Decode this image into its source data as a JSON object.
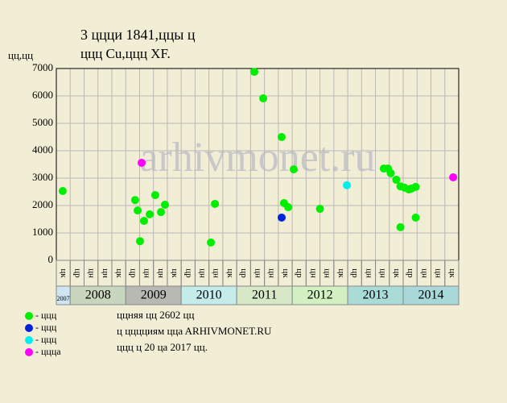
{
  "chart_data": {
    "type": "scatter",
    "title": "3 ццци 1841,ццы ц",
    "subtitle": "ццц Cu,ццц XF.",
    "y_label": "цц,цц",
    "watermark": "arhivmonet.ru",
    "quarters": [
      "цк",
      "цр",
      "цн",
      "цн",
      "цк",
      "цр",
      "цн",
      "цн",
      "цк",
      "цр",
      "цн",
      "цн",
      "цк",
      "цр",
      "цн",
      "цн",
      "цк",
      "цр",
      "цн",
      "цн",
      "цк",
      "цр",
      "цн",
      "цн",
      "цк",
      "цр",
      "цн",
      "цн",
      "цк"
    ],
    "years": [
      "2007",
      "2008",
      "2009",
      "2010",
      "2011",
      "2012",
      "2013",
      "2014"
    ],
    "year_colors": [
      "#cfe6f0",
      "#c9d6bf",
      "#b9b9b4",
      "#c4ecea",
      "#d6e8c6",
      "#d2f0c2",
      "#a9dcd6",
      "#a9d8d8"
    ],
    "xlim": [
      0,
      29
    ],
    "ylim": [
      0,
      7000
    ],
    "yticks": [
      0,
      1000,
      2000,
      3000,
      4000,
      5000,
      6000,
      7000
    ],
    "grid": true,
    "series": [
      {
        "name": "- ццц",
        "color": "#00ee00",
        "x": [
          0.46,
          5.68,
          5.86,
          6.03,
          6.32,
          6.73,
          7.13,
          7.54,
          7.83,
          11.14,
          11.43,
          14.27,
          14.91,
          16.24,
          16.41,
          16.71,
          17.11,
          19.0,
          23.6,
          23.9,
          24.1,
          24.5,
          24.8,
          25.1,
          25.4,
          25.6,
          25.9,
          24.8,
          25.9
        ],
        "values": [
          2530,
          2200,
          1820,
          700,
          1440,
          1680,
          2380,
          1760,
          2030,
          650,
          2060,
          6880,
          5910,
          4500,
          2090,
          1940,
          3320,
          1880,
          3350,
          3350,
          3180,
          2940,
          2700,
          2650,
          2590,
          2620,
          2680,
          1210,
          1560
        ]
      },
      {
        "name": "- ццц",
        "color": "#0022dd",
        "x": [
          16.24
        ],
        "values": [
          1560
        ]
      },
      {
        "name": "- ццц",
        "color": "#00eeee",
        "x": [
          20.94
        ],
        "values": [
          2740
        ]
      },
      {
        "name": "- цццa",
        "color": "#ff00ff",
        "x": [
          6.15,
          28.6
        ],
        "values": [
          3560,
          3030
        ]
      }
    ],
    "notes": [
      "ццняя цц 2602 цц",
      "ц цццциям ццa ARHIVMONET.RU",
      "ццц ц 20 цa 2017 цц."
    ]
  }
}
